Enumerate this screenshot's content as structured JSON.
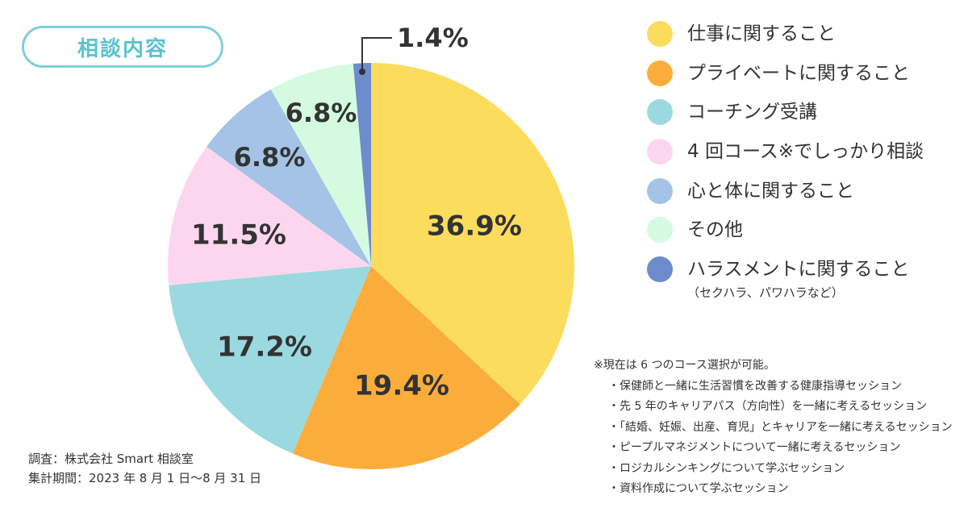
{
  "badge": {
    "label": "相談内容"
  },
  "chart_data": {
    "type": "pie",
    "title": "相談内容",
    "slices": [
      {
        "label": "仕事に関すること",
        "value": 36.9,
        "display": "36.9%",
        "color": "#fcdc5c"
      },
      {
        "label": "プライベートに関すること",
        "value": 19.4,
        "display": "19.4%",
        "color": "#fbad3c"
      },
      {
        "label": "コーチング受講",
        "value": 17.2,
        "display": "17.2%",
        "color": "#9bd9e0"
      },
      {
        "label": "4 回コース※でしっかり相談",
        "value": 11.5,
        "display": "11.5%",
        "color": "#fcd6ef"
      },
      {
        "label": "心と体に関すること",
        "value": 6.8,
        "display": "6.8%",
        "color": "#a4c3e6"
      },
      {
        "label": "その他",
        "value": 6.8,
        "display": "6.8%",
        "color": "#d4fbe0"
      },
      {
        "label": "ハラスメントに関すること",
        "sublabel": "（セクハラ、パワハラなど）",
        "value": 1.4,
        "display": "1.4%",
        "color": "#6c8ccc"
      }
    ],
    "legend_position": "right"
  },
  "notes": {
    "heading": "※現在は 6 つのコース選択が可能。",
    "items": [
      "・保健師と一緒に生活習慣を改善する健康指導セッション",
      "・先 5 年のキャリアパス（方向性）を一緒に考えるセッション",
      "・「結婚、妊娠、出産、育児」とキャリアを一緒に考えるセッション",
      "・ピープルマネジメントについて一緒に考えるセッション",
      "・ロジカルシンキングについて学ぶセッション",
      "・資料作成について学ぶセッション"
    ]
  },
  "source": {
    "survey": "調査：株式会社 Smart 相談室",
    "period": "集計期間：2023 年 8 月 1 日〜8 月 31 日"
  }
}
